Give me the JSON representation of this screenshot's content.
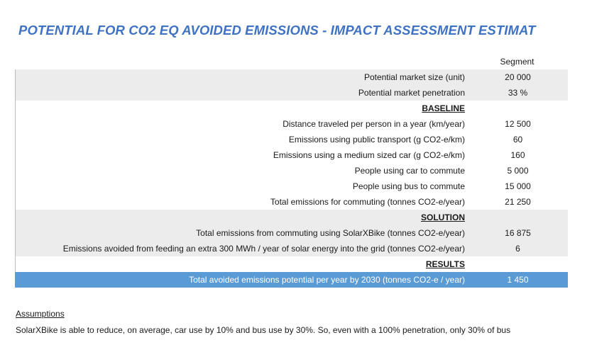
{
  "title": "POTENTIAL FOR CO2 EQ AVOIDED EMISSIONS - IMPACT ASSESSMENT ESTIMAT",
  "column_header": "Segment",
  "rows": [
    {
      "label": "Potential market size (unit)",
      "value": "20 000",
      "type": "shaded"
    },
    {
      "label": "Potential market penetration",
      "value": "33 %",
      "type": "shaded"
    },
    {
      "label": "BASELINE",
      "value": "",
      "type": "section"
    },
    {
      "label": "Distance traveled per person in a year (km/year)",
      "value": "12 500",
      "type": "plain"
    },
    {
      "label": "Emissions using public transport (g CO2-e/km)",
      "value": "60",
      "type": "plain"
    },
    {
      "label": "Emissions using a medium sized car (g CO2-e/km)",
      "value": "160",
      "type": "plain"
    },
    {
      "label": "People using car to commute",
      "value": "5 000",
      "type": "plain"
    },
    {
      "label": "People using bus to commute",
      "value": "15 000",
      "type": "plain"
    },
    {
      "label": "Total emissions for commuting (tonnes CO2-e/year)",
      "value": "21 250",
      "type": "plain"
    },
    {
      "label": "SOLUTION",
      "value": "",
      "type": "section-shaded"
    },
    {
      "label": "Total emissions from commuting using SolarXBike (tonnes CO2-e/year)",
      "value": "16 875",
      "type": "shaded"
    },
    {
      "label": "Emissions avoided from feeding an extra 300 MWh / year of solar energy into the grid (tonnes CO2-e/year)",
      "value": "6",
      "type": "shaded"
    },
    {
      "label": "RESULTS",
      "value": "",
      "type": "section"
    },
    {
      "label": "Total avoided emissions potential per year by 2030 (tonnes CO2-e / year)",
      "value": "1 450",
      "type": "result"
    }
  ],
  "assumptions": {
    "title": "Assumptions",
    "text": "SolarXBike is able to reduce, on average, car use by 10% and bus use by 30%. So, even with a 100% penetration, only 30% of bus"
  }
}
